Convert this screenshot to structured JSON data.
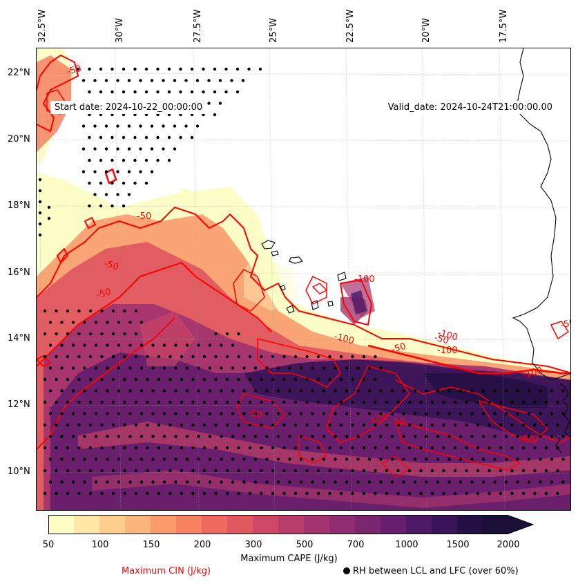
{
  "map": {
    "start_date": "Start date: 2024-10-22_00:00:00",
    "valid_date": "Valid_date: 2024-10-24T21:00:00.00",
    "lon_labels": [
      "32.5°W",
      "30°W",
      "27.5°W",
      "25°W",
      "22.5°W",
      "20°W",
      "17.5°W"
    ],
    "lat_labels": [
      "22°N",
      "20°N",
      "18°N",
      "16°N",
      "14°N",
      "12°N",
      "10°N"
    ],
    "cin_contour_labels": [
      "-50",
      "-50",
      "-50",
      "-50",
      "-100",
      "-100",
      "-50",
      "-100",
      "-50",
      "-100",
      "-50",
      "-50",
      "-100",
      "-50",
      "-100",
      "-50"
    ],
    "cin_color": "#ff0000",
    "coastline_color": "#000000"
  },
  "colorbar": {
    "ticks": [
      "50",
      "100",
      "150",
      "200",
      "300",
      "500",
      "700",
      "1000",
      "1500",
      "2000"
    ],
    "colors": [
      "#fdfdc4",
      "#fde8a8",
      "#fdcf8c",
      "#fcb57a",
      "#fa9b6c",
      "#f78161",
      "#ee6a5e",
      "#e05860",
      "#cd4866",
      "#b83d6b",
      "#a3346f",
      "#8e2d70",
      "#7a266f",
      "#651f6c",
      "#4e1966",
      "#391458",
      "#241044",
      "#1a0f35"
    ],
    "extend": "max",
    "label": "Maximum CAPE (J/kg)",
    "cin_label": "Maximum CIN (J/kg)",
    "rh_label": "RH between LCL and LFC (over 60%)"
  }
}
